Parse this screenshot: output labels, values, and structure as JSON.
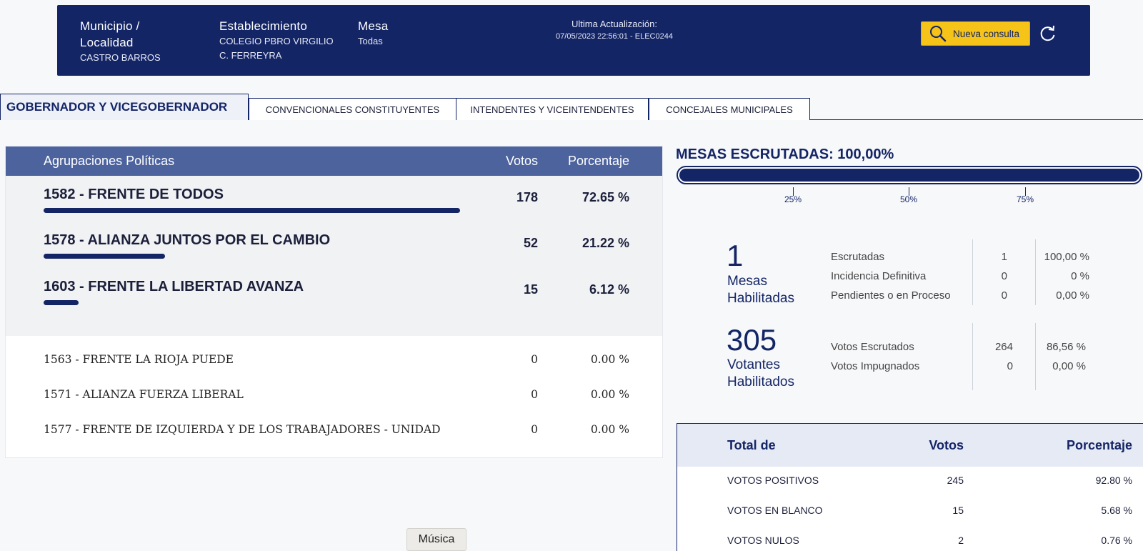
{
  "header": {
    "municipio_label": "Municipio / Localidad",
    "municipio_value": "CASTRO BARROS",
    "establecimiento_label": "Establecimiento",
    "establecimiento_value": "COLEGIO PBRO VIRGILIO C. FERREYRA",
    "mesa_label": "Mesa",
    "mesa_value": "Todas",
    "update_label": "Ultima Actualización:",
    "update_value": "07/05/2023 22:56:01 - ELEC0244",
    "nueva_consulta": "Nueva consulta",
    "icons": [
      "search-icon",
      "refresh-icon"
    ],
    "colors": {
      "header_bg": "#142566",
      "button_bg": "#f6c319"
    }
  },
  "tabs": [
    {
      "label": "GOBERNADOR Y VICEGOBERNADOR",
      "active": true
    },
    {
      "label": "CONVENCIONALES CONSTITUYENTES",
      "active": false
    },
    {
      "label": "INTENDENTES Y VICEINTENDENTES",
      "active": false
    },
    {
      "label": "CONCEJALES MUNICIPALES",
      "active": false
    }
  ],
  "parties_table": {
    "headers": {
      "name": "Agrupaciones Políticas",
      "votes": "Votos",
      "pct": "Porcentaje"
    },
    "top": [
      {
        "name": "1582 - FRENTE DE TODOS",
        "votes": "178",
        "pct": "72.65 %",
        "share": 0.7265
      },
      {
        "name": "1578 - ALIANZA JUNTOS POR EL CAMBIO",
        "votes": "52",
        "pct": "21.22 %",
        "share": 0.2122
      },
      {
        "name": "1603 - FRENTE LA LIBERTAD AVANZA",
        "votes": "15",
        "pct": "6.12 %",
        "share": 0.0612
      }
    ],
    "others": [
      {
        "name": "1563 - FRENTE LA RIOJA PUEDE",
        "votes": "0",
        "pct": "0.00 %"
      },
      {
        "name": "1571 - ALIANZA FUERZA LIBERAL",
        "votes": "0",
        "pct": "0.00 %"
      },
      {
        "name": "1577 - FRENTE DE IZQUIERDA Y DE LOS TRABAJADORES - UNIDAD",
        "votes": "0",
        "pct": "0.00 %"
      }
    ]
  },
  "mesas": {
    "title": "MESAS ESCRUTADAS: 100,00%",
    "progress": 1.0,
    "ticks": [
      "25%",
      "50%",
      "75%"
    ]
  },
  "stats": {
    "mesas_count": "1",
    "mesas_caption_1": "Mesas",
    "mesas_caption_2": "Habilitadas",
    "mesas_rows": [
      {
        "label": "Escrutadas",
        "value": "1",
        "pct": "100,00 %"
      },
      {
        "label": "Incidencia Definitiva",
        "value": "0",
        "pct": "0 %"
      },
      {
        "label": "Pendientes o en Proceso",
        "value": "0",
        "pct": "0,00 %"
      }
    ],
    "votantes_count": "305",
    "votantes_caption_1": "Votantes",
    "votantes_caption_2": "Habilitados",
    "votantes_rows": [
      {
        "label": "Votos Escrutados",
        "value": "264",
        "pct": "86,56 %"
      },
      {
        "label": "Votos Impugnados",
        "value": "0",
        "pct": "0,00 %"
      }
    ]
  },
  "totals_table": {
    "headers": {
      "name": "Total de",
      "votes": "Votos",
      "pct": "Porcentaje"
    },
    "rows": [
      {
        "name": "VOTOS POSITIVOS",
        "votes": "245",
        "pct": "92.80 %"
      },
      {
        "name": "VOTOS EN BLANCO",
        "votes": "15",
        "pct": "5.68 %"
      },
      {
        "name": "VOTOS NULOS",
        "votes": "2",
        "pct": "0.76 %"
      }
    ]
  },
  "footer": {
    "musica": "Música"
  }
}
